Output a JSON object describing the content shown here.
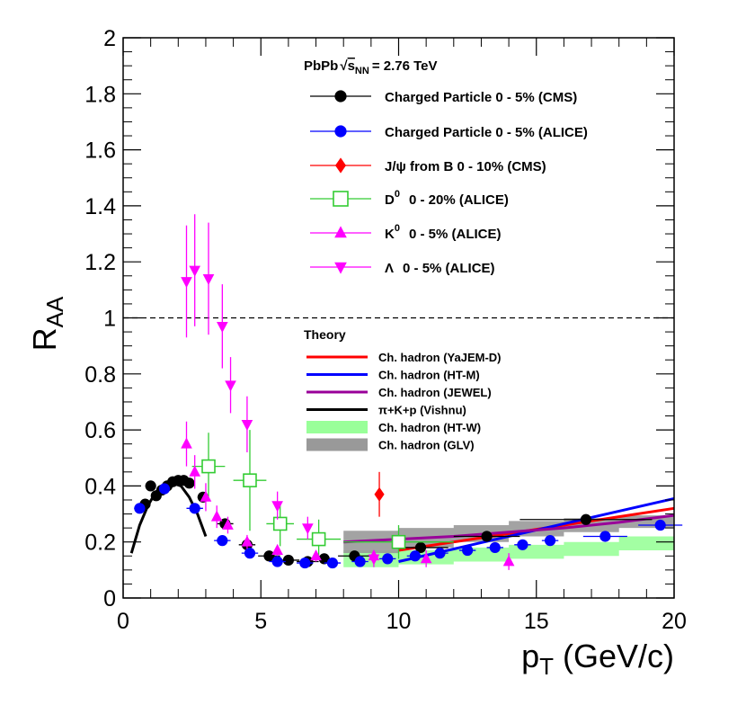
{
  "chart_data": {
    "type": "scatter",
    "title": "PbPb √sNN = 2.76 TeV",
    "title_parts": {
      "system": "PbPb",
      "energy_symbol": "s",
      "energy_subscript": "NN",
      "energy_value": "= 2.76 TeV"
    },
    "xlabel": "pT (GeV/c)",
    "xlabel_parts": {
      "base": "p",
      "sub": "T",
      "rest": " (GeV/c)"
    },
    "ylabel": "RAA",
    "ylabel_parts": {
      "base": "R",
      "sub": "AA"
    },
    "xlim": [
      0,
      20
    ],
    "ylim": [
      0,
      2
    ],
    "x_ticks": [
      "0",
      "5",
      "10",
      "15",
      "20"
    ],
    "y_ticks": [
      "0",
      "0.2",
      "0.4",
      "0.6",
      "0.8",
      "1",
      "1.2",
      "1.4",
      "1.6",
      "1.8",
      "2"
    ],
    "reference_line": {
      "y": 1,
      "style": "dashed"
    },
    "legend_position": "top-right",
    "theory_title": "Theory",
    "series": [
      {
        "name": "Charged Particle 0 - 5% (CMS)",
        "legend_label": "Charged Particle 0 - 5% (CMS)",
        "marker": "circle",
        "filled": true,
        "color": "#000000",
        "points": [
          {
            "x": 0.8,
            "y": 0.335,
            "err": 0.01,
            "xerr": 0.1
          },
          {
            "x": 1.0,
            "y": 0.4,
            "err": 0.01,
            "xerr": 0.1
          },
          {
            "x": 1.2,
            "y": 0.365,
            "err": 0.01,
            "xerr": 0.1
          },
          {
            "x": 1.4,
            "y": 0.385,
            "err": 0.01,
            "xerr": 0.1
          },
          {
            "x": 1.6,
            "y": 0.4,
            "err": 0.01,
            "xerr": 0.1
          },
          {
            "x": 1.8,
            "y": 0.415,
            "err": 0.01,
            "xerr": 0.1
          },
          {
            "x": 2.0,
            "y": 0.42,
            "err": 0.01,
            "xerr": 0.1
          },
          {
            "x": 2.2,
            "y": 0.42,
            "err": 0.01,
            "xerr": 0.1
          },
          {
            "x": 2.4,
            "y": 0.41,
            "err": 0.01,
            "xerr": 0.1
          },
          {
            "x": 2.9,
            "y": 0.36,
            "err": 0.01,
            "xerr": 0.2
          },
          {
            "x": 3.7,
            "y": 0.265,
            "err": 0.01,
            "xerr": 0.3
          },
          {
            "x": 4.5,
            "y": 0.19,
            "err": 0.01,
            "xerr": 0.3
          },
          {
            "x": 5.3,
            "y": 0.15,
            "err": 0.01,
            "xerr": 0.4
          },
          {
            "x": 6.0,
            "y": 0.135,
            "err": 0.01,
            "xerr": 0.4
          },
          {
            "x": 6.7,
            "y": 0.13,
            "err": 0.01,
            "xerr": 0.4
          },
          {
            "x": 7.3,
            "y": 0.14,
            "err": 0.01,
            "xerr": 0.4
          },
          {
            "x": 8.4,
            "y": 0.15,
            "err": 0.01,
            "xerr": 0.6
          },
          {
            "x": 10.8,
            "y": 0.18,
            "err": 0.01,
            "xerr": 1.0
          },
          {
            "x": 13.2,
            "y": 0.22,
            "err": 0.015,
            "xerr": 1.2
          },
          {
            "x": 16.8,
            "y": 0.28,
            "err": 0.015,
            "xerr": 2.4
          }
        ]
      },
      {
        "name": "Charged Particle 0 - 5% (ALICE)",
        "legend_label": "Charged Particle 0 - 5% (ALICE)",
        "marker": "circle",
        "filled": true,
        "color": "#0000ff",
        "points": [
          {
            "x": 0.6,
            "y": 0.32,
            "err": 0.01,
            "xerr": 0.2
          },
          {
            "x": 1.5,
            "y": 0.39,
            "err": 0.01,
            "xerr": 0.1
          },
          {
            "x": 2.6,
            "y": 0.32,
            "err": 0.01,
            "xerr": 0.3
          },
          {
            "x": 3.6,
            "y": 0.205,
            "err": 0.01,
            "xerr": 0.3
          },
          {
            "x": 4.6,
            "y": 0.16,
            "err": 0.01,
            "xerr": 0.3
          },
          {
            "x": 5.6,
            "y": 0.13,
            "err": 0.01,
            "xerr": 0.3
          },
          {
            "x": 6.6,
            "y": 0.125,
            "err": 0.01,
            "xerr": 0.3
          },
          {
            "x": 7.6,
            "y": 0.125,
            "err": 0.01,
            "xerr": 0.3
          },
          {
            "x": 8.6,
            "y": 0.13,
            "err": 0.01,
            "xerr": 0.3
          },
          {
            "x": 9.6,
            "y": 0.14,
            "err": 0.01,
            "xerr": 0.3
          },
          {
            "x": 10.6,
            "y": 0.15,
            "err": 0.01,
            "xerr": 0.3
          },
          {
            "x": 11.5,
            "y": 0.16,
            "err": 0.01,
            "xerr": 0.3
          },
          {
            "x": 12.5,
            "y": 0.17,
            "err": 0.01,
            "xerr": 0.3
          },
          {
            "x": 13.5,
            "y": 0.18,
            "err": 0.01,
            "xerr": 0.3
          },
          {
            "x": 14.5,
            "y": 0.19,
            "err": 0.01,
            "xerr": 0.3
          },
          {
            "x": 15.5,
            "y": 0.205,
            "err": 0.01,
            "xerr": 0.3
          },
          {
            "x": 17.5,
            "y": 0.22,
            "err": 0.01,
            "xerr": 0.8
          },
          {
            "x": 19.5,
            "y": 0.26,
            "err": 0.01,
            "xerr": 0.8
          }
        ]
      },
      {
        "name": "J/ψ from B 0 - 10% (CMS)",
        "legend_label": "J/ψ from B 0 - 10% (CMS)",
        "marker": "diamond",
        "filled": true,
        "color": "#ff0000",
        "points": [
          {
            "x": 9.3,
            "y": 0.37,
            "err": 0.08,
            "xerr": 0
          }
        ]
      },
      {
        "name": "D0 0 - 20% (ALICE)",
        "legend_label": "0 - 20% (ALICE)",
        "legend_symbol": "D",
        "legend_sup": "0",
        "marker": "square",
        "filled": false,
        "color": "#33cc33",
        "points": [
          {
            "x": 3.1,
            "y": 0.47,
            "err": 0.12,
            "xerr": 0.6
          },
          {
            "x": 4.6,
            "y": 0.42,
            "err": 0.18,
            "xerr": 0.6
          },
          {
            "x": 5.7,
            "y": 0.265,
            "err": 0.08,
            "xerr": 0.5
          },
          {
            "x": 7.1,
            "y": 0.21,
            "err": 0.07,
            "xerr": 0.8
          },
          {
            "x": 10.0,
            "y": 0.2,
            "err": 0.06,
            "xerr": 2.0
          }
        ]
      },
      {
        "name": "K0 0 - 5% (ALICE)",
        "legend_label": "0 - 5% (ALICE)",
        "legend_symbol": "K",
        "legend_sup": "0",
        "marker": "triangle-up",
        "filled": true,
        "color": "#ff00ff",
        "points": [
          {
            "x": 2.3,
            "y": 0.55,
            "err": 0.08,
            "xerr": 0
          },
          {
            "x": 2.6,
            "y": 0.45,
            "err": 0.06,
            "xerr": 0
          },
          {
            "x": 3.0,
            "y": 0.36,
            "err": 0.05,
            "xerr": 0
          },
          {
            "x": 3.4,
            "y": 0.29,
            "err": 0.04,
            "xerr": 0
          },
          {
            "x": 3.8,
            "y": 0.26,
            "err": 0.03,
            "xerr": 0
          },
          {
            "x": 4.5,
            "y": 0.2,
            "err": 0.025,
            "xerr": 0
          },
          {
            "x": 5.6,
            "y": 0.17,
            "err": 0.02,
            "xerr": 0
          },
          {
            "x": 7.0,
            "y": 0.15,
            "err": 0.02,
            "xerr": 0
          },
          {
            "x": 9.1,
            "y": 0.15,
            "err": 0.02,
            "xerr": 0
          },
          {
            "x": 11.0,
            "y": 0.14,
            "err": 0.03,
            "xerr": 0
          },
          {
            "x": 14.0,
            "y": 0.13,
            "err": 0.03,
            "xerr": 0
          }
        ]
      },
      {
        "name": "Λ 0 - 5% (ALICE)",
        "legend_label": "0 - 5% (ALICE)",
        "legend_symbol": "Λ",
        "marker": "triangle-down",
        "filled": true,
        "color": "#ff00ff",
        "points": [
          {
            "x": 2.3,
            "y": 1.13,
            "err": 0.2,
            "xerr": 0
          },
          {
            "x": 2.6,
            "y": 1.17,
            "err": 0.2,
            "xerr": 0
          },
          {
            "x": 3.1,
            "y": 1.14,
            "err": 0.2,
            "xerr": 0
          },
          {
            "x": 3.6,
            "y": 0.97,
            "err": 0.15,
            "xerr": 0
          },
          {
            "x": 3.9,
            "y": 0.76,
            "err": 0.1,
            "xerr": 0
          },
          {
            "x": 4.5,
            "y": 0.62,
            "err": 0.1,
            "xerr": 0
          },
          {
            "x": 5.6,
            "y": 0.33,
            "err": 0.05,
            "xerr": 0
          },
          {
            "x": 6.7,
            "y": 0.25,
            "err": 0.04,
            "xerr": 0
          },
          {
            "x": 9.1,
            "y": 0.14,
            "err": 0.03,
            "xerr": 0
          }
        ]
      }
    ],
    "theory": [
      {
        "name": "Ch. hadron (YaJEM-D)",
        "style": "line",
        "color": "#ff0000",
        "x": [
          10,
          12,
          14,
          16,
          18,
          20
        ],
        "y": [
          0.17,
          0.2,
          0.23,
          0.26,
          0.29,
          0.32
        ]
      },
      {
        "name": "Ch. hadron (HT-M)",
        "style": "line",
        "color": "#0000ff",
        "x": [
          10,
          12,
          14,
          16,
          18,
          20
        ],
        "y": [
          0.13,
          0.175,
          0.22,
          0.265,
          0.31,
          0.355
        ]
      },
      {
        "name": "Ch. hadron (JEWEL)",
        "style": "line",
        "color": "#990099",
        "x": [
          8,
          10,
          12,
          14,
          16,
          18,
          20
        ],
        "y": [
          0.2,
          0.21,
          0.22,
          0.235,
          0.25,
          0.27,
          0.295
        ]
      },
      {
        "name": "π+K+p (Vishnu)",
        "style": "line",
        "color": "#000000",
        "x": [
          0.3,
          0.6,
          0.9,
          1.2,
          1.5,
          1.8,
          2.1,
          2.4,
          2.7,
          3.0
        ],
        "y": [
          0.16,
          0.26,
          0.33,
          0.38,
          0.4,
          0.41,
          0.4,
          0.36,
          0.3,
          0.22
        ]
      },
      {
        "name": "Ch. hadron (HT-W)",
        "style": "band",
        "color": "#99ff99",
        "x": [
          8,
          10,
          12,
          14,
          16,
          18,
          20
        ],
        "y_low": [
          0.11,
          0.12,
          0.13,
          0.14,
          0.15,
          0.17,
          0.19
        ],
        "y_high": [
          0.17,
          0.17,
          0.18,
          0.19,
          0.2,
          0.22,
          0.24
        ]
      },
      {
        "name": "Ch. hadron (GLV)",
        "style": "band",
        "color": "#999999",
        "x": [
          8,
          10,
          12,
          14,
          16,
          18,
          20
        ],
        "y_low": [
          0.16,
          0.18,
          0.2,
          0.22,
          0.235,
          0.25,
          0.26
        ],
        "y_high": [
          0.24,
          0.25,
          0.26,
          0.275,
          0.285,
          0.295,
          0.3
        ]
      }
    ]
  }
}
